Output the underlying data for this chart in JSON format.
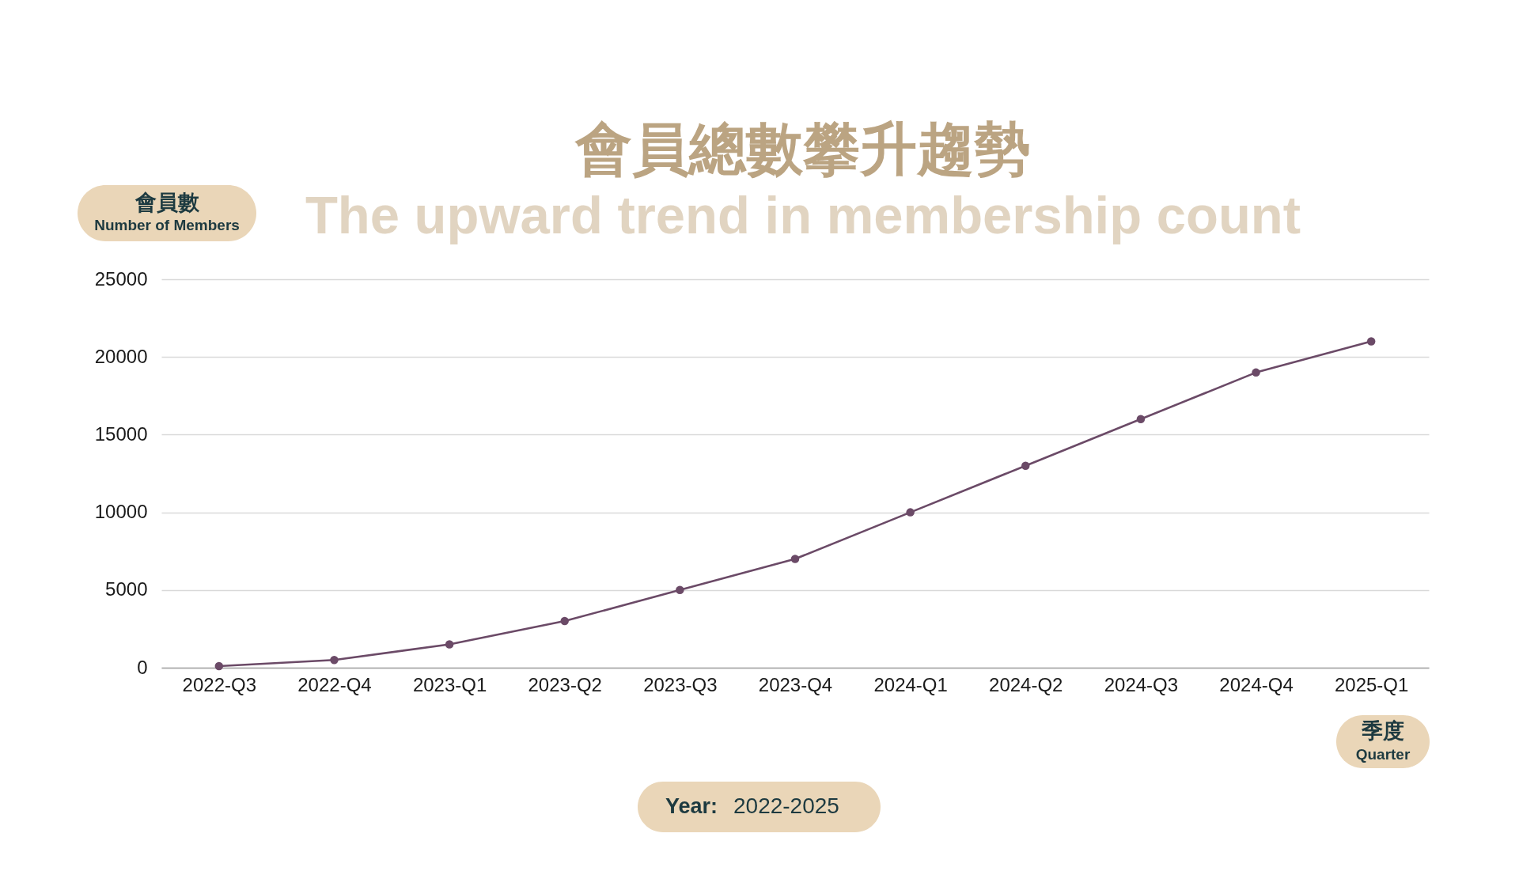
{
  "chart_data": {
    "type": "line",
    "title": "會員總數攀升趨勢",
    "subtitle": "The upward trend in membership count",
    "ylabel": "會員數\nNumber of Members",
    "xlabel": "季度\nQuarter",
    "annotations": [
      "Year: 2022-2025"
    ],
    "categories": [
      "2022-Q3",
      "2022-Q4",
      "2023-Q1",
      "2023-Q2",
      "2023-Q3",
      "2023-Q4",
      "2024-Q1",
      "2024-Q2",
      "2024-Q3",
      "2024-Q4",
      "2025-Q1"
    ],
    "series": [
      {
        "color": "#6b4a67",
        "values": [
          100,
          500,
          1500,
          3000,
          5000,
          7000,
          10000,
          13000,
          16000,
          19000,
          21000
        ]
      }
    ],
    "ylim": [
      0,
      25000
    ],
    "yticks": [
      0,
      5000,
      10000,
      15000,
      20000,
      25000
    ],
    "grid": "y",
    "marker": "circle",
    "line_style": "solid"
  }
}
